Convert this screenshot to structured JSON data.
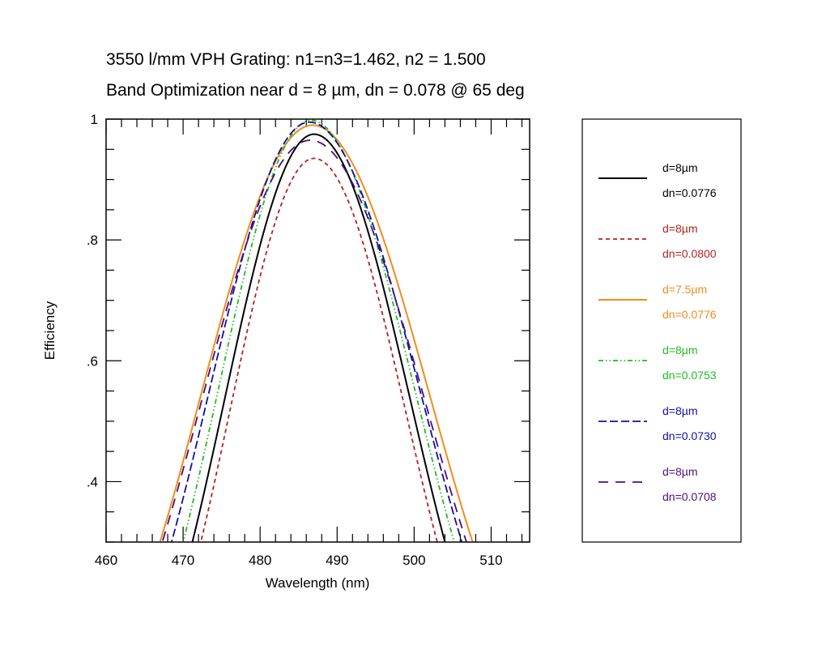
{
  "chart_data": {
    "type": "line",
    "title": "3550 l/mm VPH Grating: n1=n3=1.462, n2 = 1.500",
    "subtitle": "Band Optimization near d = 8 µm, dn = 0.078 @ 65 deg",
    "xlabel": "Wavelength (nm)",
    "ylabel": "Efficiency",
    "xlim": [
      460,
      515
    ],
    "ylim": [
      0.3,
      1.0
    ],
    "x_ticks": [
      460,
      470,
      480,
      490,
      500,
      510
    ],
    "x_tick_labels": [
      "460",
      "470",
      "480",
      "490",
      "500",
      "510"
    ],
    "x_minor_step": 2,
    "y_ticks": [
      0.4,
      0.6,
      0.8,
      1.0
    ],
    "y_tick_labels": [
      ".4",
      ".6",
      ".8",
      "1"
    ],
    "y_minor_step": 0.05,
    "grid": false,
    "legend_position": "right-outside",
    "series": [
      {
        "name": "d=8µm dn=0.0776",
        "label1": "d=8µm",
        "label2": "dn=0.0776",
        "color": "#000000",
        "style": "solid",
        "peak": 0.975,
        "center": 487.0,
        "x_left_at_0.3": 471.2,
        "x_right_at_0.3": 504.0
      },
      {
        "name": "d=8µm dn=0.0800",
        "label1": "d=8µm",
        "label2": "dn=0.0800",
        "color": "#b22222",
        "style": "dashed",
        "peak": 0.935,
        "center": 487.0,
        "x_left_at_0.3": 472.3,
        "x_right_at_0.3": 503.0
      },
      {
        "name": "d=7.5µm dn=0.0776",
        "label1": "d=7.5µm",
        "label2": "dn=0.0776",
        "color": "#f08c1c",
        "style": "solid",
        "peak": 0.99,
        "center": 486.8,
        "x_left_at_0.3": 467.0,
        "x_right_at_0.3": 507.6
      },
      {
        "name": "d=8µm dn=0.0753",
        "label1": "d=8µm",
        "label2": "dn=0.0753",
        "color": "#22bb22",
        "style": "dashdotdot",
        "peak": 0.998,
        "center": 486.6,
        "x_left_at_0.3": 470.0,
        "x_right_at_0.3": 505.2
      },
      {
        "name": "d=8µm dn=0.0730",
        "label1": "d=8µm",
        "label2": "dn=0.0730",
        "color": "#1010a0",
        "style": "longdash",
        "peak": 0.995,
        "center": 486.4,
        "x_left_at_0.3": 468.5,
        "x_right_at_0.3": 506.2
      },
      {
        "name": "d=8µm dn=0.0708",
        "label1": "d=8µm",
        "label2": "dn=0.0708",
        "color": "#4b0f7a",
        "style": "sparsedash",
        "peak": 0.965,
        "center": 486.5,
        "x_left_at_0.3": 467.3,
        "x_right_at_0.3": 506.8
      }
    ]
  }
}
